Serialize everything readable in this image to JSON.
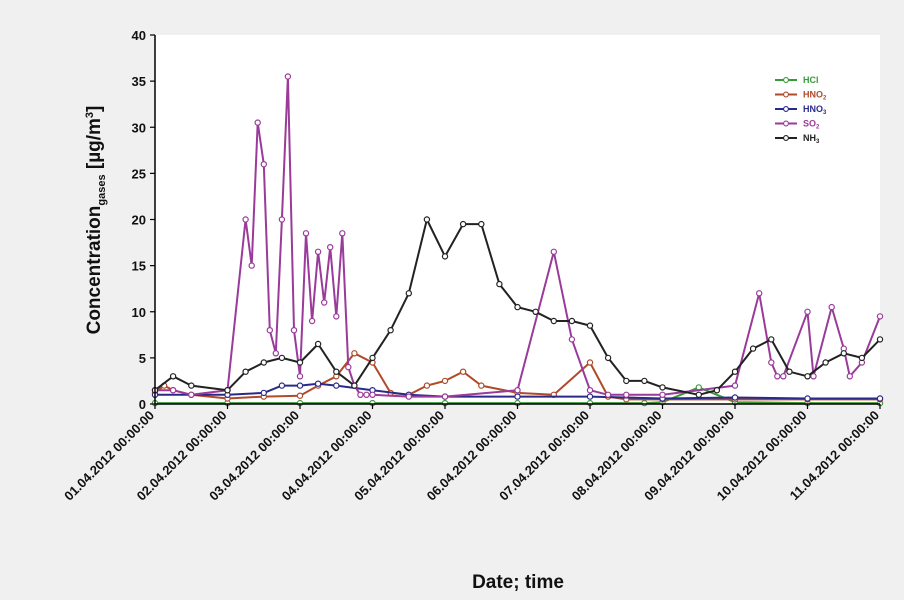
{
  "chart_data": {
    "type": "line",
    "xlabel": "Date; time",
    "ylabel": "Concentration",
    "ylabel_sub": "gases",
    "ylabel_unit": " [µg/m",
    "ylabel_unit_sup": "3",
    "ylabel_unit_end": "]",
    "ylim": [
      0,
      40
    ],
    "yticks": [
      0,
      5,
      10,
      15,
      20,
      25,
      30,
      35,
      40
    ],
    "xlim": [
      "01.04.2012 00:00:00",
      "11.04.2012 00:00:00"
    ],
    "xticks": [
      "01.04.2012 00:00:00",
      "02.04.2012 00:00:00",
      "03.04.2012 00:00:00",
      "04.04.2012 00:00:00",
      "05.04.2012 00:00:00",
      "06.04.2012 00:00:00",
      "07.04.2012 00:00:00",
      "08.04.2012 00:00:00",
      "09.04.2012 00:00:00",
      "10.04.2012 00:00:00",
      "11.04.2012 00:00:00"
    ],
    "grid": false,
    "legend_position": "top-right",
    "series": [
      {
        "name": "HCl",
        "name_sub": "",
        "color": "#3a9a3a",
        "x": [
          "01.04.2012 00:00",
          "02.04.2012 00:00",
          "03.04.2012 00:00",
          "04.04.2012 00:00",
          "05.04.2012 00:00",
          "06.04.2012 00:00",
          "07.04.2012 00:00",
          "07.04.2012 18:00",
          "08.04.2012 00:00",
          "08.04.2012 12:00",
          "09.04.2012 00:00",
          "10.04.2012 00:00",
          "11.04.2012 00:00"
        ],
        "values": [
          0.1,
          0.1,
          0.1,
          0.1,
          0.1,
          0.1,
          0.1,
          0.1,
          0.2,
          1.8,
          0.2,
          0.1,
          0.1
        ]
      },
      {
        "name": "HNO",
        "name_sub": "2",
        "color": "#b04a2a",
        "x": [
          "01.04.2012 00:00",
          "01.04.2012 03:00",
          "01.04.2012 06:00",
          "01.04.2012 12:00",
          "02.04.2012 00:00",
          "02.04.2012 12:00",
          "03.04.2012 00:00",
          "03.04.2012 06:00",
          "03.04.2012 12:00",
          "03.04.2012 18:00",
          "04.04.2012 00:00",
          "04.04.2012 06:00",
          "04.04.2012 12:00",
          "04.04.2012 18:00",
          "05.04.2012 00:00",
          "05.04.2012 06:00",
          "05.04.2012 12:00",
          "06.04.2012 00:00",
          "06.04.2012 12:00",
          "07.04.2012 00:00",
          "07.04.2012 06:00",
          "07.04.2012 12:00",
          "08.04.2012 00:00",
          "09.04.2012 00:00",
          "10.04.2012 00:00",
          "11.04.2012 00:00"
        ],
        "values": [
          1.2,
          2.0,
          1.5,
          1.0,
          0.6,
          0.8,
          0.9,
          2.0,
          3.0,
          5.5,
          4.5,
          1.2,
          1.0,
          2.0,
          2.5,
          3.5,
          2.0,
          1.2,
          1.0,
          4.5,
          0.8,
          0.5,
          0.5,
          0.5,
          0.5,
          0.5
        ]
      },
      {
        "name": "HNO",
        "name_sub": "3",
        "color": "#2a2a8a",
        "x": [
          "01.04.2012 00:00",
          "02.04.2012 00:00",
          "02.04.2012 12:00",
          "02.04.2012 18:00",
          "03.04.2012 00:00",
          "03.04.2012 06:00",
          "03.04.2012 12:00",
          "04.04.2012 00:00",
          "04.04.2012 12:00",
          "05.04.2012 00:00",
          "06.04.2012 00:00",
          "07.04.2012 00:00",
          "08.04.2012 00:00",
          "09.04.2012 00:00",
          "10.04.2012 00:00",
          "11.04.2012 00:00"
        ],
        "values": [
          1.0,
          1.0,
          1.2,
          2.0,
          2.0,
          2.2,
          2.0,
          1.5,
          1.0,
          0.8,
          0.8,
          0.8,
          0.6,
          0.7,
          0.6,
          0.6
        ]
      },
      {
        "name": "SO",
        "name_sub": "2",
        "color": "#9a3a9a",
        "x": [
          "01.04.2012 00:00",
          "01.04.2012 06:00",
          "01.04.2012 12:00",
          "02.04.2012 00:00",
          "02.04.2012 06:00",
          "02.04.2012 08:00",
          "02.04.2012 10:00",
          "02.04.2012 12:00",
          "02.04.2012 14:00",
          "02.04.2012 16:00",
          "02.04.2012 18:00",
          "02.04.2012 20:00",
          "02.04.2012 22:00",
          "03.04.2012 00:00",
          "03.04.2012 02:00",
          "03.04.2012 04:00",
          "03.04.2012 06:00",
          "03.04.2012 08:00",
          "03.04.2012 10:00",
          "03.04.2012 12:00",
          "03.04.2012 14:00",
          "03.04.2012 16:00",
          "03.04.2012 18:00",
          "03.04.2012 20:00",
          "03.04.2012 22:00",
          "04.04.2012 00:00",
          "04.04.2012 12:00",
          "05.04.2012 00:00",
          "06.04.2012 00:00",
          "06.04.2012 12:00",
          "06.04.2012 18:00",
          "07.04.2012 00:00",
          "07.04.2012 06:00",
          "07.04.2012 12:00",
          "08.04.2012 00:00",
          "09.04.2012 00:00",
          "09.04.2012 08:00",
          "09.04.2012 12:00",
          "09.04.2012 14:00",
          "09.04.2012 16:00",
          "10.04.2012 00:00",
          "10.04.2012 02:00",
          "10.04.2012 08:00",
          "10.04.2012 12:00",
          "10.04.2012 14:00",
          "10.04.2012 18:00",
          "11.04.2012 00:00"
        ],
        "values": [
          1.5,
          1.5,
          1.0,
          1.5,
          20.0,
          15.0,
          30.5,
          26.0,
          8.0,
          5.5,
          20.0,
          35.5,
          8.0,
          3.0,
          18.5,
          9.0,
          16.5,
          11.0,
          17.0,
          9.5,
          18.5,
          4.0,
          2.0,
          1.0,
          1.0,
          1.0,
          0.8,
          0.8,
          1.5,
          16.5,
          7.0,
          1.5,
          1.0,
          1.0,
          1.0,
          2.0,
          12.0,
          4.5,
          3.0,
          3.0,
          10.0,
          3.0,
          10.5,
          6.0,
          3.0,
          4.5,
          9.5
        ]
      },
      {
        "name": "NH",
        "name_sub": "3",
        "color": "#222222",
        "x": [
          "01.04.2012 00:00",
          "01.04.2012 06:00",
          "01.04.2012 12:00",
          "02.04.2012 00:00",
          "02.04.2012 06:00",
          "02.04.2012 12:00",
          "02.04.2012 18:00",
          "03.04.2012 00:00",
          "03.04.2012 06:00",
          "03.04.2012 12:00",
          "03.04.2012 18:00",
          "04.04.2012 00:00",
          "04.04.2012 06:00",
          "04.04.2012 12:00",
          "04.04.2012 18:00",
          "05.04.2012 00:00",
          "05.04.2012 06:00",
          "05.04.2012 12:00",
          "05.04.2012 18:00",
          "06.04.2012 00:00",
          "06.04.2012 06:00",
          "06.04.2012 12:00",
          "06.04.2012 18:00",
          "07.04.2012 00:00",
          "07.04.2012 06:00",
          "07.04.2012 12:00",
          "07.04.2012 18:00",
          "08.04.2012 00:00",
          "08.04.2012 12:00",
          "08.04.2012 18:00",
          "09.04.2012 00:00",
          "09.04.2012 06:00",
          "09.04.2012 12:00",
          "09.04.2012 18:00",
          "10.04.2012 00:00",
          "10.04.2012 06:00",
          "10.04.2012 12:00",
          "10.04.2012 18:00",
          "11.04.2012 00:00"
        ],
        "values": [
          1.5,
          3.0,
          2.0,
          1.5,
          3.5,
          4.5,
          5.0,
          4.5,
          6.5,
          3.5,
          2.0,
          5.0,
          8.0,
          12.0,
          20.0,
          16.0,
          19.5,
          19.5,
          13.0,
          10.5,
          10.0,
          9.0,
          9.0,
          8.5,
          5.0,
          2.5,
          2.5,
          1.8,
          1.0,
          1.5,
          3.5,
          6.0,
          7.0,
          3.5,
          3.0,
          4.5,
          5.5,
          5.0,
          7.0
        ]
      }
    ]
  }
}
